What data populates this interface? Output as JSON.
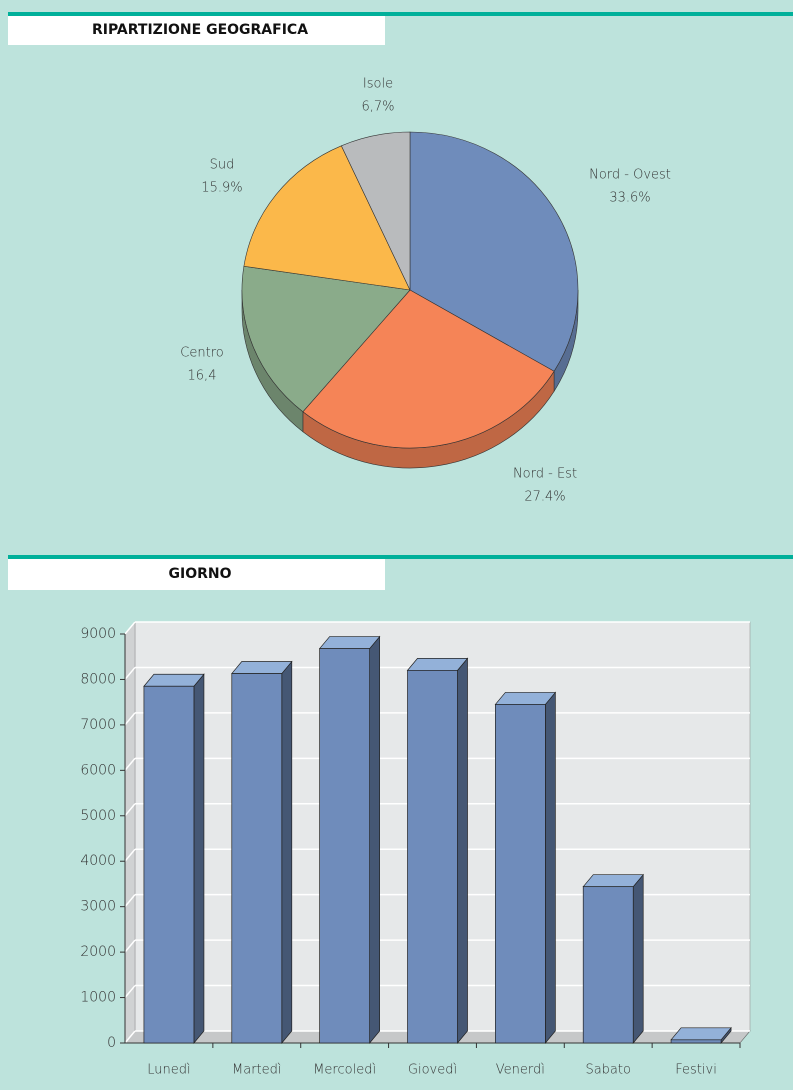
{
  "chart_data": [
    {
      "type": "pie",
      "title": "RIPARTIZIONE GEOGRAFICA",
      "categories": [
        "Nord - Ovest",
        "Nord - Est",
        "Centro",
        "Sud",
        "Isole"
      ],
      "values": [
        33.6,
        27.4,
        16.4,
        15.9,
        6.7
      ],
      "value_labels": [
        "33.6%",
        "27.4%",
        "16,4",
        "15.9%",
        "6,7%"
      ],
      "colors": [
        "#6f8cbb",
        "#f58457",
        "#8aab8a",
        "#fbb84a",
        "#b9bbbd"
      ]
    },
    {
      "type": "bar",
      "title": "GIORNO",
      "categories": [
        "Lunedì",
        "Martedì",
        "Mercoledì",
        "Giovedì",
        "Venerdì",
        "Sabato",
        "Festivi"
      ],
      "values": [
        7850,
        8130,
        8680,
        8200,
        7450,
        3440,
        70
      ],
      "color": "#6f8cbb",
      "ylim": [
        0,
        9000
      ],
      "yticks": [
        0,
        1000,
        2000,
        3000,
        4000,
        5000,
        6000,
        7000,
        8000,
        9000
      ],
      "grid": true
    }
  ]
}
